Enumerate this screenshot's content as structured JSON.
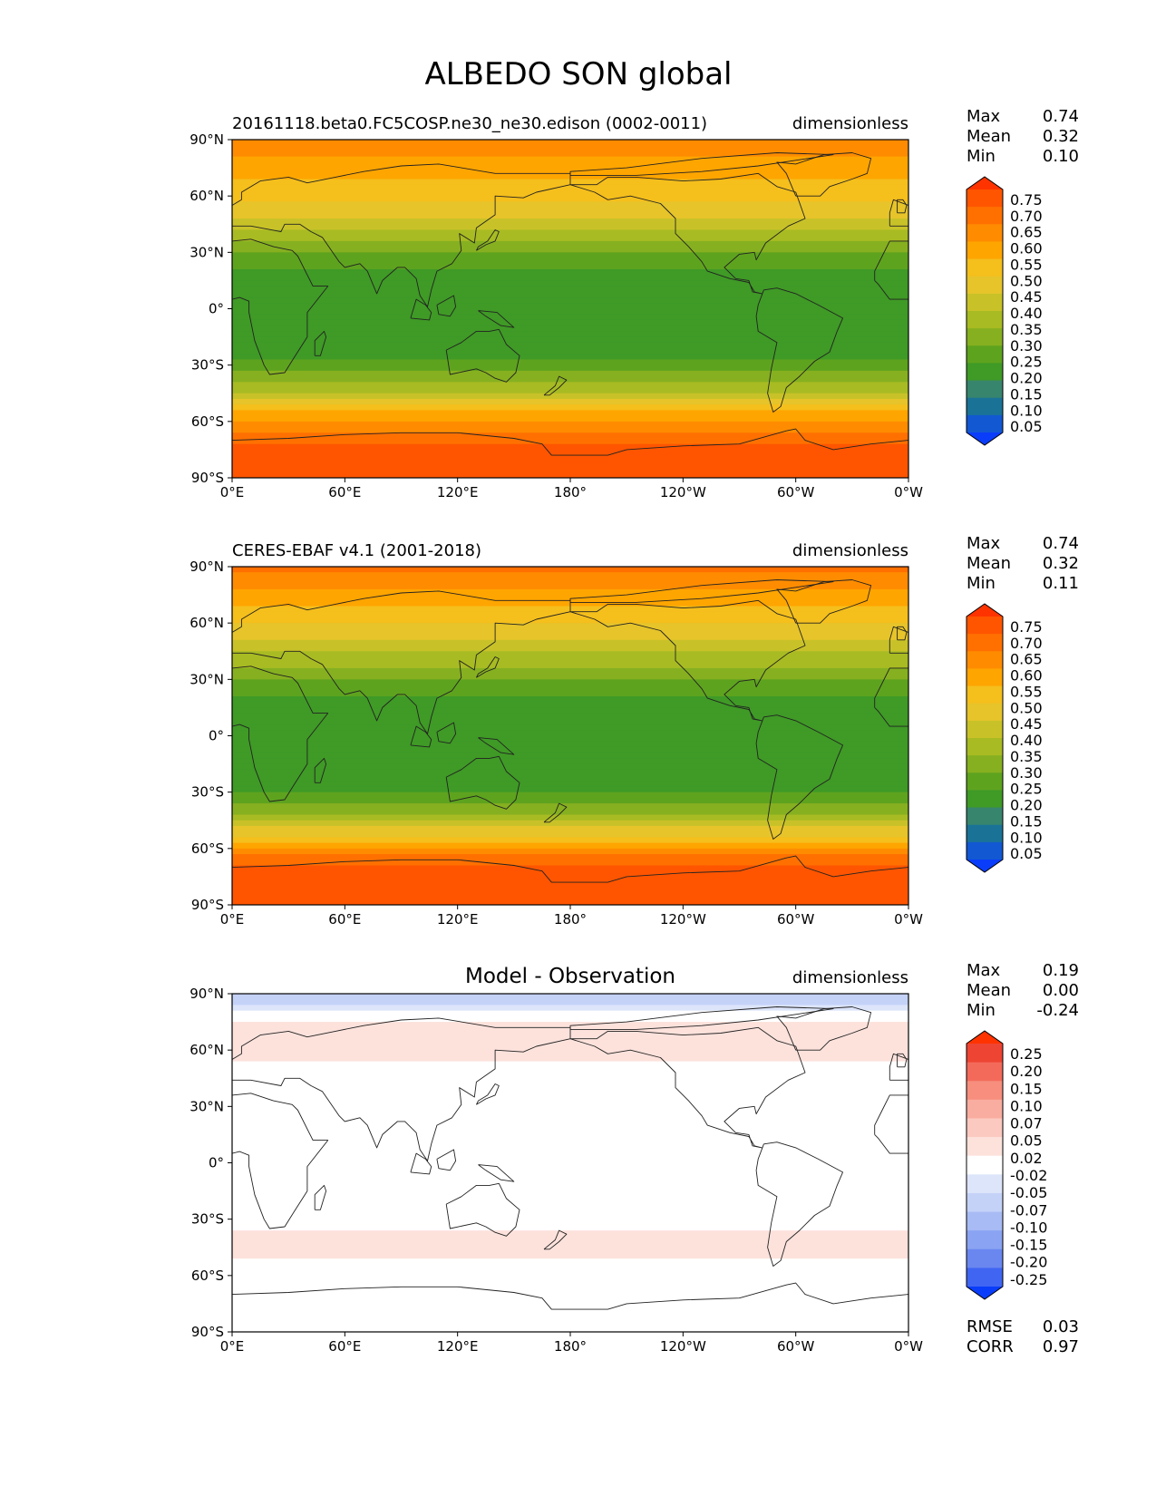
{
  "figure_title": "ALBEDO SON global",
  "chart_data": [
    {
      "type": "heatmap",
      "title_left": "20161118.beta0.FC5COSP.ne30_ne30.edison (0002-0011)",
      "title_center": "",
      "units": "dimensionless",
      "xticks": [
        "0°E",
        "60°E",
        "120°E",
        "180°",
        "120°W",
        "60°W",
        "0°W"
      ],
      "yticks": [
        "90°N",
        "60°N",
        "30°N",
        "0°",
        "30°S",
        "60°S",
        "90°S"
      ],
      "xlim": [
        0,
        360
      ],
      "ylim": [
        -90,
        90
      ],
      "stats": [
        {
          "label": "Max",
          "value": "0.74"
        },
        {
          "label": "Mean",
          "value": "0.32"
        },
        {
          "label": "Min",
          "value": "0.10"
        }
      ],
      "colorbar": {
        "levels": [
          "0.75",
          "0.70",
          "0.65",
          "0.60",
          "0.55",
          "0.50",
          "0.45",
          "0.40",
          "0.35",
          "0.30",
          "0.25",
          "0.20",
          "0.15",
          "0.10",
          "0.05"
        ],
        "colors": [
          "#ff3300",
          "#ff5500",
          "#ff7000",
          "#ff8c00",
          "#ffa500",
          "#f5bf1c",
          "#e6c42a",
          "#c8c228",
          "#a8bb22",
          "#86b020",
          "#5ea31e",
          "#3f9a26",
          "#38856d",
          "#1a7397",
          "#1258d2",
          "#0a3dfa"
        ]
      },
      "zonal_profile": {
        "lat": [
          -90,
          -75,
          -70,
          -62,
          -55,
          -48,
          -40,
          -30,
          -20,
          -10,
          0,
          10,
          20,
          30,
          40,
          50,
          60,
          70,
          80,
          90
        ],
        "value": [
          0.71,
          0.71,
          0.68,
          0.62,
          0.55,
          0.45,
          0.35,
          0.26,
          0.22,
          0.23,
          0.25,
          0.23,
          0.25,
          0.3,
          0.38,
          0.47,
          0.52,
          0.55,
          0.6,
          0.62
        ]
      }
    },
    {
      "type": "heatmap",
      "title_left": "CERES-EBAF v4.1 (2001-2018)",
      "title_center": "",
      "units": "dimensionless",
      "xticks": [
        "0°E",
        "60°E",
        "120°E",
        "180°",
        "120°W",
        "60°W",
        "0°W"
      ],
      "yticks": [
        "90°N",
        "60°N",
        "30°N",
        "0°",
        "30°S",
        "60°S",
        "90°S"
      ],
      "xlim": [
        0,
        360
      ],
      "ylim": [
        -90,
        90
      ],
      "stats": [
        {
          "label": "Max",
          "value": "0.74"
        },
        {
          "label": "Mean",
          "value": "0.32"
        },
        {
          "label": "Min",
          "value": "0.11"
        }
      ],
      "colorbar": {
        "levels": [
          "0.75",
          "0.70",
          "0.65",
          "0.60",
          "0.55",
          "0.50",
          "0.45",
          "0.40",
          "0.35",
          "0.30",
          "0.25",
          "0.20",
          "0.15",
          "0.10",
          "0.05"
        ],
        "colors": [
          "#ff3300",
          "#ff5500",
          "#ff7000",
          "#ff8c00",
          "#ffa500",
          "#f5bf1c",
          "#e6c42a",
          "#c8c228",
          "#a8bb22",
          "#86b020",
          "#5ea31e",
          "#3f9a26",
          "#38856d",
          "#1a7397",
          "#1258d2",
          "#0a3dfa"
        ]
      },
      "zonal_profile": {
        "lat": [
          -90,
          -75,
          -70,
          -62,
          -55,
          -48,
          -40,
          -30,
          -20,
          -10,
          0,
          10,
          20,
          30,
          40,
          50,
          60,
          70,
          80,
          90
        ],
        "value": [
          0.72,
          0.72,
          0.7,
          0.63,
          0.53,
          0.43,
          0.33,
          0.24,
          0.2,
          0.22,
          0.24,
          0.22,
          0.24,
          0.29,
          0.37,
          0.45,
          0.5,
          0.55,
          0.62,
          0.66
        ]
      }
    },
    {
      "type": "heatmap",
      "title_left": "",
      "title_center": "Model - Observation",
      "units": "dimensionless",
      "xticks": [
        "0°E",
        "60°E",
        "120°E",
        "180°",
        "120°W",
        "60°W",
        "0°W"
      ],
      "yticks": [
        "90°N",
        "60°N",
        "30°N",
        "0°",
        "30°S",
        "60°S",
        "90°S"
      ],
      "xlim": [
        0,
        360
      ],
      "ylim": [
        -90,
        90
      ],
      "stats": [
        {
          "label": "Max",
          "value": "0.19"
        },
        {
          "label": "Mean",
          "value": "0.00"
        },
        {
          "label": "Min",
          "value": "-0.24"
        }
      ],
      "metrics": [
        {
          "label": "RMSE",
          "value": "0.03"
        },
        {
          "label": "CORR",
          "value": "0.97"
        }
      ],
      "colorbar": {
        "levels": [
          "0.25",
          "0.20",
          "0.15",
          "0.10",
          "0.07",
          "0.05",
          "0.02",
          "-0.02",
          "-0.05",
          "-0.07",
          "-0.10",
          "-0.15",
          "-0.20",
          "-0.25"
        ],
        "colors": [
          "#ff3300",
          "#ee4433",
          "#f46a5a",
          "#f78e7e",
          "#f9ada0",
          "#fbc9c0",
          "#fde2dc",
          "#ffffff",
          "#dde5fa",
          "#c5d2f8",
          "#a8bbf5",
          "#8aa3f2",
          "#6a87f0",
          "#4065f2",
          "#0a3dfa"
        ]
      },
      "zonal_profile": {
        "lat": [
          -90,
          -70,
          -60,
          -45,
          -30,
          -15,
          0,
          15,
          30,
          45,
          60,
          75,
          85,
          90
        ],
        "value": [
          -0.01,
          0.02,
          0.0,
          0.03,
          0.01,
          0.0,
          0.01,
          0.0,
          0.01,
          0.0,
          0.03,
          0.02,
          -0.05,
          -0.06
        ]
      }
    }
  ]
}
